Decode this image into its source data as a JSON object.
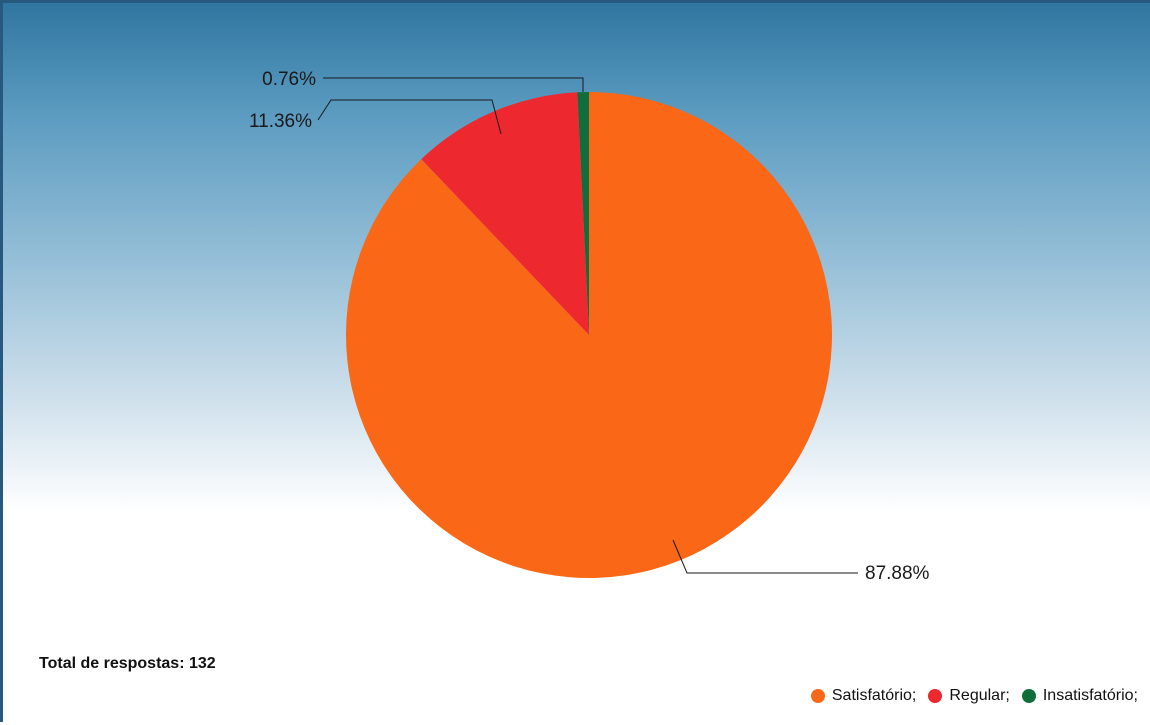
{
  "chart_data": {
    "type": "pie",
    "title": "",
    "slices": [
      {
        "name": "Satisfatório;",
        "value": 87.88,
        "label": "87.88%",
        "color": "#f96717"
      },
      {
        "name": "Regular;",
        "value": 11.36,
        "label": "11.36%",
        "color": "#ed282f"
      },
      {
        "name": "Insatisfatório;",
        "value": 0.76,
        "label": "0.76%",
        "color": "#0f6e3c"
      }
    ],
    "legend_position": "bottom-right"
  },
  "footer": {
    "total_text": "Total de respostas: 132"
  }
}
